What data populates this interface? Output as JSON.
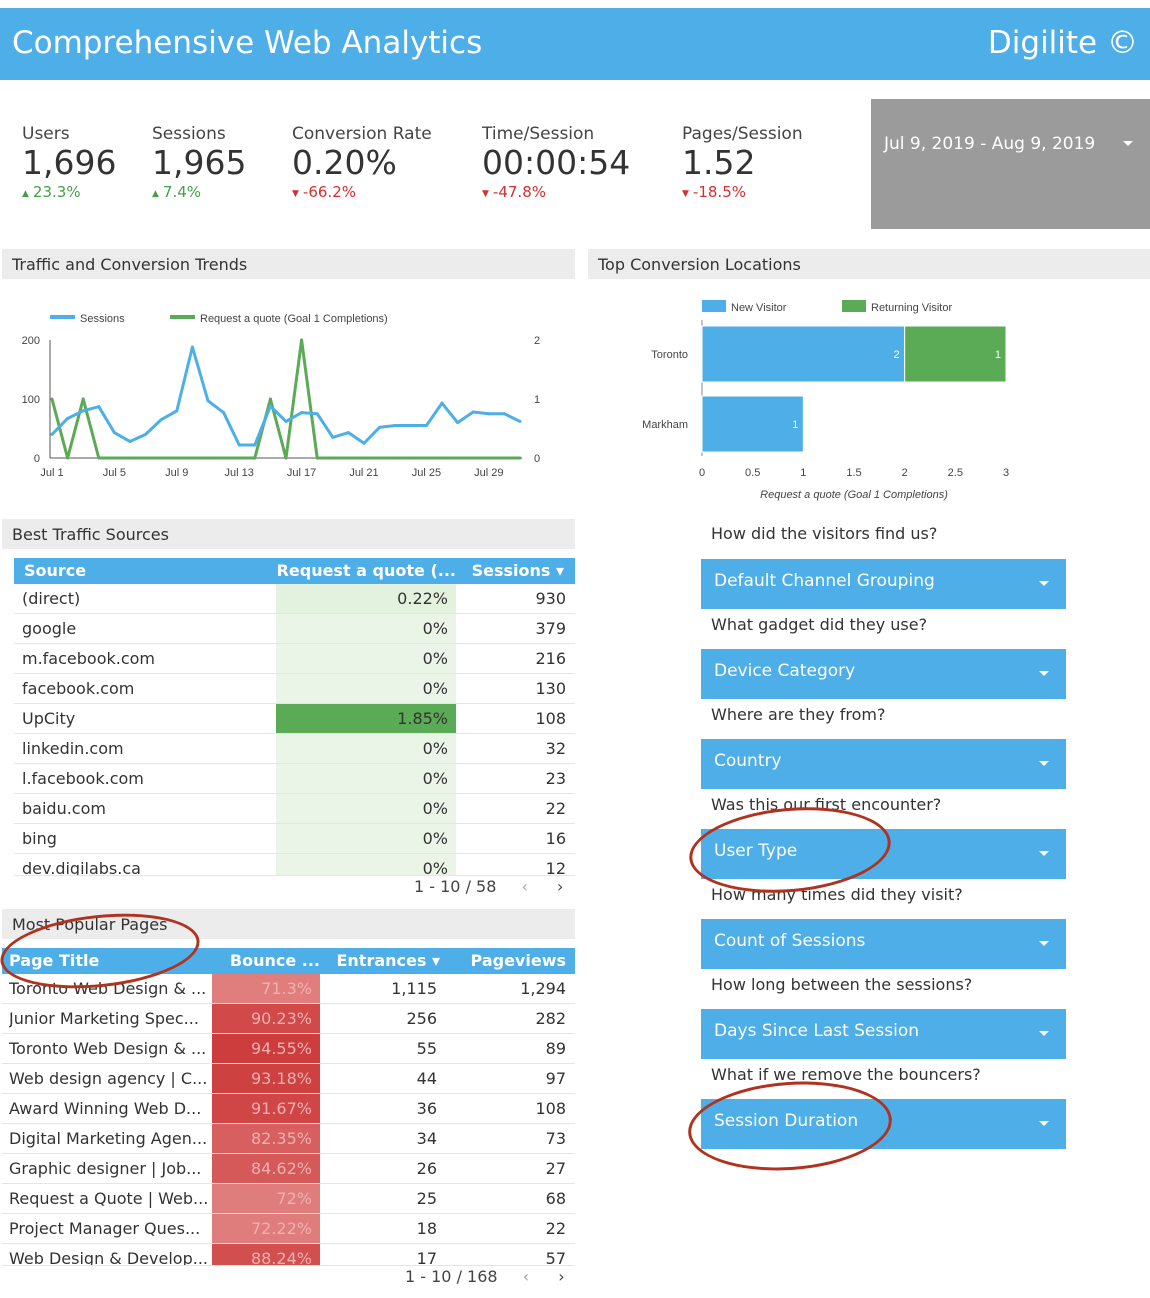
{
  "header": {
    "title": "Comprehensive Web Analytics",
    "brand": "Digilite ©"
  },
  "kpis": [
    {
      "label": "Users",
      "value": "1,696",
      "change": "23.3%",
      "dir": "up"
    },
    {
      "label": "Sessions",
      "value": "1,965",
      "change": "7.4%",
      "dir": "up"
    },
    {
      "label": "Conversion Rate",
      "value": "0.20%",
      "change": "-66.2%",
      "dir": "down"
    },
    {
      "label": "Time/Session",
      "value": "00:00:54",
      "change": "-47.8%",
      "dir": "down"
    },
    {
      "label": "Pages/Session",
      "value": "1.52",
      "change": "-18.5%",
      "dir": "down"
    }
  ],
  "date_range": "Jul 9, 2019 - Aug 9, 2019",
  "sections": {
    "trends": "Traffic and Conversion Trends",
    "locations": "Top Conversion Locations",
    "sources": "Best Traffic Sources",
    "pages": "Most Popular Pages"
  },
  "chart_data": [
    {
      "type": "line",
      "title": "Traffic and Conversion Trends",
      "x": [
        "Jul 1",
        "Jul 2",
        "Jul 3",
        "Jul 4",
        "Jul 5",
        "Jul 6",
        "Jul 7",
        "Jul 8",
        "Jul 9",
        "Jul 10",
        "Jul 11",
        "Jul 12",
        "Jul 13",
        "Jul 14",
        "Jul 15",
        "Jul 16",
        "Jul 17",
        "Jul 18",
        "Jul 19",
        "Jul 20",
        "Jul 21",
        "Jul 22",
        "Jul 23",
        "Jul 24",
        "Jul 25",
        "Jul 26",
        "Jul 27",
        "Jul 28",
        "Jul 29",
        "Jul 30",
        "Jul 31"
      ],
      "tick_labels": [
        "Jul 1",
        "Jul 5",
        "Jul 9",
        "Jul 13",
        "Jul 17",
        "Jul 21",
        "Jul 25",
        "Jul 29"
      ],
      "series": [
        {
          "name": "Sessions",
          "color": "#4DAEE8",
          "axis": "left",
          "values": [
            40,
            67,
            80,
            87,
            43,
            28,
            40,
            65,
            80,
            188,
            97,
            77,
            22,
            22,
            88,
            62,
            77,
            75,
            35,
            43,
            25,
            52,
            55,
            55,
            55,
            93,
            60,
            78,
            75,
            75,
            62
          ]
        },
        {
          "name": "Request a quote (Goal 1 Completions)",
          "color": "#5BAA55",
          "axis": "right",
          "values": [
            1,
            0,
            1,
            0,
            0,
            0,
            0,
            0,
            0,
            0,
            0,
            0,
            0,
            0,
            1,
            0,
            2,
            0,
            0,
            0,
            0,
            0,
            0,
            0,
            0,
            0,
            0,
            0,
            0,
            0,
            0
          ]
        }
      ],
      "ylim_left": [
        0,
        200
      ],
      "yticks_left": [
        "0",
        "100",
        "200"
      ],
      "ylim_right": [
        0,
        2
      ],
      "yticks_right": [
        "0",
        "1",
        "2"
      ]
    },
    {
      "type": "bar",
      "orientation": "horizontal",
      "stacked": true,
      "categories": [
        "Toronto",
        "Markham"
      ],
      "series": [
        {
          "name": "New Visitor",
          "color": "#4DAEE8",
          "values": [
            2,
            1
          ]
        },
        {
          "name": "Returning Visitor",
          "color": "#5BAA55",
          "values": [
            1,
            0
          ]
        }
      ],
      "xlabel": "Request a quote (Goal 1 Completions)",
      "xlim": [
        0,
        3
      ],
      "xticks": [
        "0",
        "0.5",
        "1",
        "1.5",
        "2",
        "2.5",
        "3"
      ]
    }
  ],
  "sources_table": {
    "headers": [
      "Source",
      "Request a quote (...",
      "Sessions ▾"
    ],
    "rows": [
      {
        "source": "(direct)",
        "rate": "0.22%",
        "sessions": "930",
        "rate_num": 0.22
      },
      {
        "source": "google",
        "rate": "0%",
        "sessions": "379",
        "rate_num": 0
      },
      {
        "source": "m.facebook.com",
        "rate": "0%",
        "sessions": "216",
        "rate_num": 0
      },
      {
        "source": "facebook.com",
        "rate": "0%",
        "sessions": "130",
        "rate_num": 0
      },
      {
        "source": "UpCity",
        "rate": "1.85%",
        "sessions": "108",
        "rate_num": 1.85
      },
      {
        "source": "linkedin.com",
        "rate": "0%",
        "sessions": "32",
        "rate_num": 0
      },
      {
        "source": "l.facebook.com",
        "rate": "0%",
        "sessions": "23",
        "rate_num": 0
      },
      {
        "source": "baidu.com",
        "rate": "0%",
        "sessions": "22",
        "rate_num": 0
      },
      {
        "source": "bing",
        "rate": "0%",
        "sessions": "16",
        "rate_num": 0
      },
      {
        "source": "dev.digilabs.ca",
        "rate": "0%",
        "sessions": "12",
        "rate_num": 0
      }
    ],
    "pager": "1 - 10 / 58"
  },
  "pages_table": {
    "headers": [
      "Page Title",
      "Bounce ...",
      "Entrances ▾",
      "Pageviews"
    ],
    "rows": [
      {
        "title": "Toronto Web Design & ...",
        "bounce": "71.3%",
        "entrances": "1,115",
        "pageviews": "1,294",
        "b": 71.3
      },
      {
        "title": "Junior Marketing Spec...",
        "bounce": "90.23%",
        "entrances": "256",
        "pageviews": "282",
        "b": 90.23
      },
      {
        "title": "Toronto Web Design & ...",
        "bounce": "94.55%",
        "entrances": "55",
        "pageviews": "89",
        "b": 94.55
      },
      {
        "title": "Web design agency | C...",
        "bounce": "93.18%",
        "entrances": "44",
        "pageviews": "97",
        "b": 93.18
      },
      {
        "title": "Award Winning Web D...",
        "bounce": "91.67%",
        "entrances": "36",
        "pageviews": "108",
        "b": 91.67
      },
      {
        "title": "Digital Marketing Agen...",
        "bounce": "82.35%",
        "entrances": "34",
        "pageviews": "73",
        "b": 82.35
      },
      {
        "title": "Graphic designer | Job...",
        "bounce": "84.62%",
        "entrances": "26",
        "pageviews": "27",
        "b": 84.62
      },
      {
        "title": "Request a Quote | Web...",
        "bounce": "72%",
        "entrances": "25",
        "pageviews": "68",
        "b": 72
      },
      {
        "title": "Project Manager Ques...",
        "bounce": "72.22%",
        "entrances": "18",
        "pageviews": "22",
        "b": 72.22
      },
      {
        "title": "Web Design & Develop...",
        "bounce": "88.24%",
        "entrances": "17",
        "pageviews": "57",
        "b": 88.24
      }
    ],
    "pager": "1 - 10 / 168"
  },
  "filters": [
    {
      "question": "How did the visitors find us?",
      "label": "Default Channel Grouping"
    },
    {
      "question": "What gadget did they use?",
      "label": "Device Category"
    },
    {
      "question": "Where are they from?",
      "label": "Country"
    },
    {
      "question": "Was this our first encounter?",
      "label": "User Type"
    },
    {
      "question": "How many times did they visit?",
      "label": "Count of Sessions"
    },
    {
      "question": "How long between the sessions?",
      "label": "Days Since Last Session"
    },
    {
      "question": "What if we remove the bouncers?",
      "label": "Session Duration"
    }
  ],
  "colors": {
    "accent": "#4DAEE8",
    "green": "#5BAA55",
    "red": "#D32F2F",
    "annotation": "#B0321F"
  }
}
